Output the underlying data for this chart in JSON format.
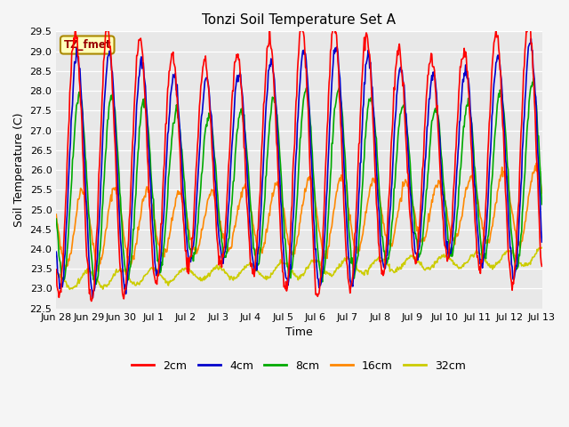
{
  "title": "Tonzi Soil Temperature Set A",
  "xlabel": "Time",
  "ylabel": "Soil Temperature (C)",
  "ylim": [
    22.5,
    29.5
  ],
  "x_tick_labels": [
    "Jun 28",
    "Jun 29",
    "Jun 30",
    "Jul 1",
    "Jul 2",
    "Jul 3",
    "Jul 4",
    "Jul 5",
    "Jul 6",
    "Jul 7",
    "Jul 8",
    "Jul 9",
    "Jul 10",
    "Jul 11",
    "Jul 12",
    "Jul 13"
  ],
  "series": {
    "2cm": {
      "color": "#ff0000",
      "lw": 1.2
    },
    "4cm": {
      "color": "#0000cc",
      "lw": 1.2
    },
    "8cm": {
      "color": "#00aa00",
      "lw": 1.2
    },
    "16cm": {
      "color": "#ff8800",
      "lw": 1.2
    },
    "32cm": {
      "color": "#cccc00",
      "lw": 1.2
    }
  },
  "legend_labels": [
    "2cm",
    "4cm",
    "8cm",
    "16cm",
    "32cm"
  ],
  "legend_colors": [
    "#ff0000",
    "#0000cc",
    "#00aa00",
    "#ff8800",
    "#cccc00"
  ],
  "annotation_text": "TZ_fmet",
  "annotation_color": "#990000",
  "annotation_bg": "#ffffbb",
  "annotation_border": "#aa8800",
  "fig_bg_color": "#f5f5f5",
  "plot_bg": "#e8e8e8",
  "grid_color": "#ffffff",
  "title_fontsize": 11,
  "axis_fontsize": 9,
  "tick_fontsize": 8
}
